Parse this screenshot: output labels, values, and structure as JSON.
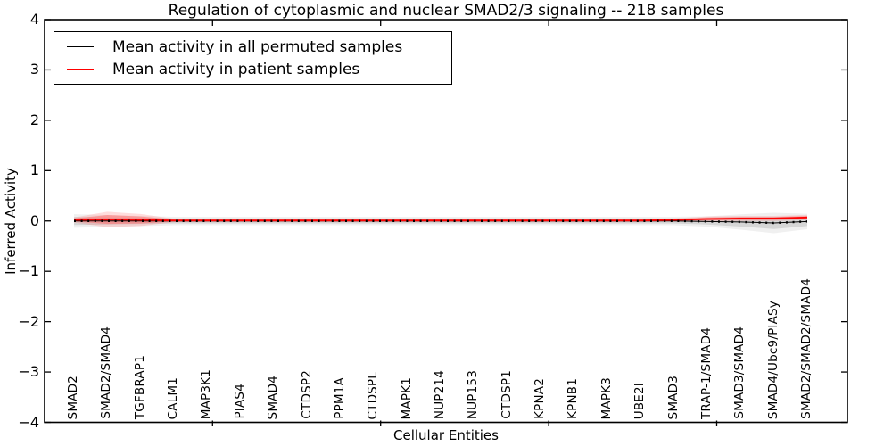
{
  "figure": {
    "title": "Regulation of cytoplasmic and nuclear SMAD2/3 signaling -- 218 samples",
    "xlabel": "Cellular Entities",
    "ylabel": "Inferred Activity"
  },
  "legend": {
    "entries": [
      {
        "label": "Mean activity in all permuted samples",
        "color": "#000000"
      },
      {
        "label": "Mean activity in patient samples",
        "color": "#ff0000"
      }
    ],
    "position": "upper left"
  },
  "colors": {
    "permuted_line": "#000000",
    "patient_line": "#ff0000",
    "permuted_band": "#bbbbbb",
    "patient_band": "#ff6666",
    "spine": "#000000",
    "background": "#ffffff"
  },
  "chart_data": {
    "type": "line",
    "title": "Regulation of cytoplasmic and nuclear SMAD2/3 signaling -- 218 samples",
    "xlabel": "Cellular Entities",
    "ylabel": "Inferred Activity",
    "ylim": [
      -4,
      4
    ],
    "yticks": [
      4,
      3,
      2,
      1,
      0,
      -1,
      -2,
      -3,
      -4
    ],
    "ytick_labels": [
      "4",
      "3",
      "2",
      "1",
      "0",
      "−1",
      "−2",
      "−3",
      "−4"
    ],
    "grid": false,
    "legend_position": "upper left",
    "categories": [
      "SMAD2",
      "SMAD2/SMAD4",
      "TGFBRAP1",
      "CALM1",
      "MAP3K1",
      "PIAS4",
      "SMAD4",
      "CTDSP2",
      "PPM1A",
      "CTDSPL",
      "MAPK1",
      "NUP214",
      "NUP153",
      "CTDSP1",
      "KPNA2",
      "KPNB1",
      "MAPK3",
      "UBE2I",
      "SMAD3",
      "TRAP-1/SMAD4",
      "SMAD3/SMAD4",
      "SMAD4/Ubc9/PIASy",
      "SMAD2/SMAD2/SMAD4"
    ],
    "series": [
      {
        "name": "Mean activity in all permuted samples",
        "color": "#000000",
        "style": "dotted",
        "values": [
          0,
          0,
          0,
          0,
          0,
          0,
          0,
          0,
          0,
          0,
          0,
          0,
          0,
          0,
          0,
          0,
          0,
          0,
          0,
          -0.01,
          -0.02,
          -0.04,
          -0.01
        ],
        "band_halfwidth": [
          0.08,
          0.07,
          0.06,
          0.05,
          0.05,
          0.05,
          0.05,
          0.05,
          0.05,
          0.05,
          0.05,
          0.05,
          0.05,
          0.05,
          0.05,
          0.05,
          0.05,
          0.05,
          0.05,
          0.06,
          0.09,
          0.12,
          0.09
        ]
      },
      {
        "name": "Mean activity in patient samples",
        "color": "#ff0000",
        "style": "solid",
        "values": [
          0.02,
          0.03,
          0.02,
          0.01,
          0.01,
          0.01,
          0.01,
          0.01,
          0.01,
          0.01,
          0.01,
          0.01,
          0.01,
          0.01,
          0.01,
          0.01,
          0.01,
          0.01,
          0.02,
          0.04,
          0.05,
          0.05,
          0.07
        ],
        "band_halfwidth": [
          0.03,
          0.09,
          0.07,
          0.02,
          0.02,
          0.02,
          0.02,
          0.02,
          0.02,
          0.02,
          0.02,
          0.02,
          0.02,
          0.02,
          0.02,
          0.02,
          0.02,
          0.02,
          0.02,
          0.03,
          0.03,
          0.03,
          0.03
        ]
      }
    ],
    "n_samples": 218
  }
}
